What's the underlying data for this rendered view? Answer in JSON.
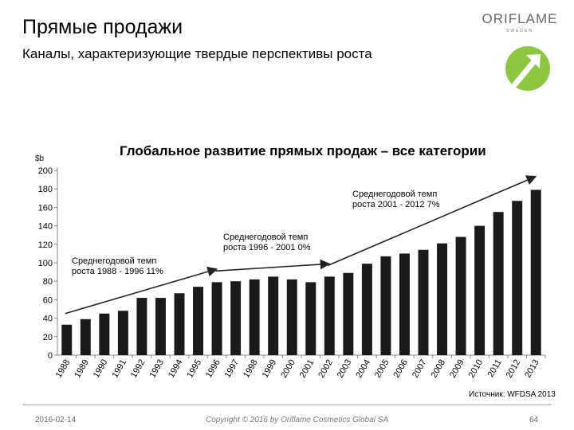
{
  "header": {
    "title": "Прямые продажи",
    "subtitle": "Каналы, характеризующие твердые перспективы роста"
  },
  "logo": {
    "text": "ORIFLAME",
    "sub": "SWEDEN",
    "accent": "#8dc63f",
    "icon": "arrow-up-right-icon"
  },
  "chart_data": {
    "type": "bar",
    "title": "Глобальное развитие прямых продаж – все категории",
    "ylabel": "$b",
    "xlabel": "",
    "ylim": [
      0,
      200
    ],
    "yticks": [
      0,
      20,
      40,
      60,
      80,
      100,
      120,
      140,
      160,
      180,
      200
    ],
    "grid": false,
    "bar_color": "#1a1a1a",
    "categories": [
      "1988",
      "1989",
      "1990",
      "1991",
      "1992",
      "1993",
      "1994",
      "1995",
      "1996",
      "1997",
      "1998",
      "1999",
      "2000",
      "2001",
      "2002",
      "2003",
      "2004",
      "2005",
      "2006",
      "2007",
      "2008",
      "2009",
      "2010",
      "2011",
      "2012",
      "2013"
    ],
    "values": [
      33,
      39,
      45,
      48,
      62,
      62,
      67,
      74,
      79,
      80,
      82,
      85,
      82,
      79,
      85,
      89,
      99,
      107,
      110,
      114,
      121,
      128,
      140,
      155,
      167,
      179
    ],
    "annotations": [
      {
        "text_line1": "Среднегодовой темп",
        "text_line2": "роста 1988 - 1996 11%",
        "from_index": 0,
        "to_index": 8
      },
      {
        "text_line1": "Среднегодовой темп",
        "text_line2": "роста 1996 - 2001 0%",
        "from_index": 8,
        "to_index": 14
      },
      {
        "text_line1": "Среднегодовой темп",
        "text_line2": "роста 2001 - 2012 7%",
        "from_index": 14,
        "to_index": 25
      }
    ]
  },
  "source": "Источник: WFDSA 2013",
  "footer": {
    "date": "2016-02-14",
    "copyright": "Copyright © 2016 by Oriflame Cosmetics Global SA",
    "page": "64"
  }
}
